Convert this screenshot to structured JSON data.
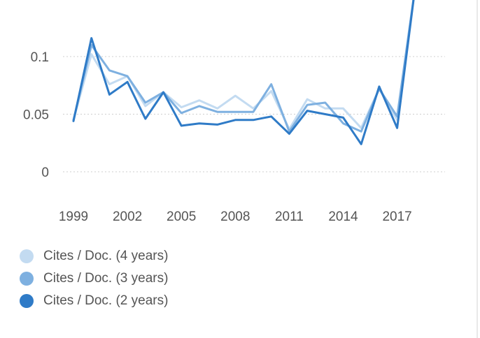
{
  "chart_data": {
    "type": "line",
    "x": [
      1999,
      2000,
      2001,
      2002,
      2003,
      2004,
      2005,
      2006,
      2007,
      2008,
      2009,
      2010,
      2011,
      2012,
      2013,
      2014,
      2015,
      2016,
      2017,
      2018
    ],
    "xticks": [
      "1999",
      "2002",
      "2005",
      "2008",
      "2011",
      "2014",
      "2017"
    ],
    "yticks": [
      "0",
      "0.05",
      "0.1"
    ],
    "ylim": [
      -0.01,
      0.145
    ],
    "grid": true,
    "legend_position": "bottom-left",
    "title": "",
    "xlabel": "",
    "ylabel": "",
    "series": [
      {
        "name": "Cites / Doc. (4 years)",
        "color": "#c3dbf1",
        "values": [
          0.045,
          0.102,
          0.076,
          0.083,
          0.057,
          0.069,
          0.056,
          0.062,
          0.055,
          0.066,
          0.055,
          0.07,
          0.037,
          0.063,
          0.055,
          0.055,
          0.038,
          0.072,
          0.045,
          0.16
        ]
      },
      {
        "name": "Cites / Doc. (3 years)",
        "color": "#7eb0e0",
        "values": [
          0.045,
          0.11,
          0.088,
          0.083,
          0.06,
          0.069,
          0.051,
          0.057,
          0.052,
          0.052,
          0.052,
          0.076,
          0.035,
          0.058,
          0.06,
          0.042,
          0.035,
          0.072,
          0.048,
          0.16
        ]
      },
      {
        "name": "Cites / Doc. (2 years)",
        "color": "#2f7bc7",
        "values": [
          0.044,
          0.116,
          0.067,
          0.078,
          0.046,
          0.069,
          0.04,
          0.042,
          0.041,
          0.045,
          0.045,
          0.048,
          0.033,
          0.053,
          0.05,
          0.047,
          0.024,
          0.074,
          0.038,
          0.16
        ]
      }
    ]
  }
}
